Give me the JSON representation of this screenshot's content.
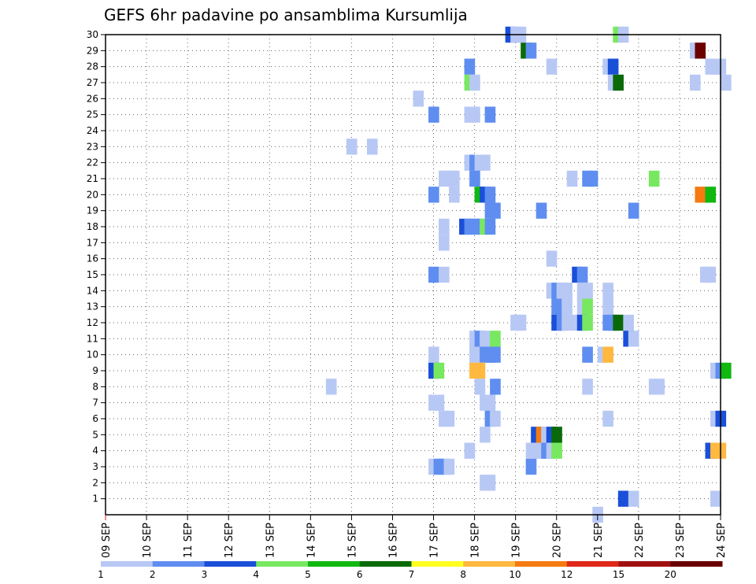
{
  "chart_data": {
    "type": "heatmap",
    "title": "GEFS 6hr padavine po ansamblima Kursumlija",
    "x_tick_labels": [
      "09 SEP",
      "10 SEP",
      "11 SEP",
      "12 SEP",
      "13 SEP",
      "14 SEP",
      "15 SEP",
      "16 SEP",
      "17 SEP",
      "18 SEP",
      "19 SEP",
      "20 SEP",
      "21 SEP",
      "22 SEP",
      "23 SEP",
      "24 SEP"
    ],
    "y_tick_labels": [
      "1",
      "2",
      "3",
      "4",
      "5",
      "6",
      "7",
      "8",
      "9",
      "10",
      "11",
      "12",
      "13",
      "14",
      "15",
      "16",
      "17",
      "18",
      "19",
      "20",
      "21",
      "22",
      "23",
      "24",
      "25",
      "26",
      "27",
      "28",
      "29",
      "30"
    ],
    "ylim": [
      0,
      30
    ],
    "xlim_days": [
      0,
      15
    ],
    "steps_per_day": 4,
    "grid": true,
    "colorbar": {
      "labels": [
        "1",
        "2",
        "3",
        "4",
        "5",
        "6",
        "7",
        "8",
        "10",
        "12",
        "15",
        "20"
      ],
      "colors": [
        "#b8c8f4",
        "#5f8ef0",
        "#1a4fd8",
        "#78e860",
        "#10b810",
        "#0a6a0a",
        "#ffff20",
        "#ffb840",
        "#f57a10",
        "#e02818",
        "#a01010",
        "#6a0000"
      ]
    },
    "cells": [
      [
        19.5,
        30,
        3
      ],
      [
        19.75,
        30,
        1
      ],
      [
        20,
        30,
        1
      ],
      [
        24.75,
        30,
        4
      ],
      [
        25,
        30,
        1
      ],
      [
        20.25,
        29,
        6
      ],
      [
        20.5,
        29,
        2
      ],
      [
        28.5,
        29,
        1
      ],
      [
        28.75,
        29,
        12
      ],
      [
        17.5,
        28,
        2
      ],
      [
        21.5,
        28,
        1
      ],
      [
        24.25,
        28,
        1
      ],
      [
        24.5,
        28,
        3
      ],
      [
        29.25,
        28,
        1
      ],
      [
        29.5,
        28,
        1
      ],
      [
        29.75,
        28,
        1
      ],
      [
        17.5,
        27,
        4
      ],
      [
        17.75,
        27,
        1
      ],
      [
        24.5,
        27,
        1
      ],
      [
        24.75,
        27,
        6
      ],
      [
        28.5,
        27,
        1
      ],
      [
        30,
        27,
        1
      ],
      [
        15,
        26,
        1
      ],
      [
        15.75,
        25,
        2
      ],
      [
        17.5,
        25,
        1
      ],
      [
        17.75,
        25,
        1
      ],
      [
        18.5,
        25,
        2
      ],
      [
        11.75,
        23,
        1
      ],
      [
        12.75,
        23,
        1
      ],
      [
        17.5,
        22,
        1
      ],
      [
        17.75,
        22,
        2
      ],
      [
        18,
        22,
        1
      ],
      [
        18.25,
        22,
        1
      ],
      [
        16.25,
        21,
        1
      ],
      [
        16.5,
        21,
        1
      ],
      [
        16.75,
        21,
        1
      ],
      [
        17.75,
        21,
        2
      ],
      [
        22.5,
        21,
        1
      ],
      [
        23.25,
        21,
        2
      ],
      [
        23.5,
        21,
        2
      ],
      [
        26.5,
        21,
        4
      ],
      [
        15.75,
        20,
        2
      ],
      [
        16.75,
        20,
        1
      ],
      [
        18,
        20,
        5
      ],
      [
        18.25,
        20,
        3
      ],
      [
        18.5,
        20,
        2
      ],
      [
        28.75,
        20,
        9
      ],
      [
        29.25,
        20,
        5
      ],
      [
        18.5,
        19,
        2
      ],
      [
        18.75,
        19,
        2
      ],
      [
        21,
        19,
        2
      ],
      [
        25.5,
        19,
        2
      ],
      [
        16.25,
        18,
        1
      ],
      [
        17.25,
        18,
        3
      ],
      [
        17.5,
        18,
        2
      ],
      [
        17.75,
        18,
        2
      ],
      [
        18,
        18,
        2
      ],
      [
        18.25,
        18,
        4
      ],
      [
        18.5,
        18,
        2
      ],
      [
        16.25,
        17,
        1
      ],
      [
        21.5,
        16,
        1
      ],
      [
        15.75,
        15,
        2
      ],
      [
        16.25,
        15,
        1
      ],
      [
        22.75,
        15,
        3
      ],
      [
        23,
        15,
        2
      ],
      [
        29,
        15,
        1
      ],
      [
        29.25,
        15,
        1
      ],
      [
        21.5,
        14,
        1
      ],
      [
        21.75,
        14,
        2
      ],
      [
        22,
        14,
        1
      ],
      [
        22.25,
        14,
        1
      ],
      [
        23,
        14,
        1
      ],
      [
        23.25,
        14,
        1
      ],
      [
        24.25,
        14,
        1
      ],
      [
        21.75,
        13,
        2
      ],
      [
        22.25,
        13,
        1
      ],
      [
        23,
        13,
        1
      ],
      [
        23.25,
        13,
        4
      ],
      [
        24.25,
        13,
        1
      ],
      [
        19.75,
        12,
        1
      ],
      [
        20,
        12,
        1
      ],
      [
        21.75,
        12,
        3
      ],
      [
        22,
        12,
        2
      ],
      [
        22.25,
        12,
        1
      ],
      [
        22.75,
        12,
        1
      ],
      [
        23,
        12,
        3
      ],
      [
        23.25,
        12,
        4
      ],
      [
        24.25,
        12,
        2
      ],
      [
        24.5,
        12,
        2
      ],
      [
        24.75,
        12,
        6
      ],
      [
        25.25,
        12,
        1
      ],
      [
        17.75,
        11,
        1
      ],
      [
        18,
        11,
        2
      ],
      [
        18.25,
        11,
        1
      ],
      [
        18.75,
        11,
        4
      ],
      [
        25.25,
        11,
        3
      ],
      [
        25.5,
        11,
        1
      ],
      [
        15.75,
        10,
        1
      ],
      [
        17.75,
        10,
        1
      ],
      [
        18.25,
        10,
        2
      ],
      [
        18.5,
        10,
        2
      ],
      [
        18.75,
        10,
        2
      ],
      [
        23.25,
        10,
        2
      ],
      [
        24,
        10,
        1
      ],
      [
        24.25,
        10,
        8
      ],
      [
        15.75,
        9,
        3
      ],
      [
        16,
        9,
        4
      ],
      [
        17.75,
        9,
        8
      ],
      [
        18,
        9,
        8
      ],
      [
        29.5,
        9,
        1
      ],
      [
        29.75,
        9,
        2
      ],
      [
        30,
        9,
        5
      ],
      [
        10.75,
        8,
        1
      ],
      [
        18,
        8,
        1
      ],
      [
        18.75,
        8,
        2
      ],
      [
        23.25,
        8,
        1
      ],
      [
        26.5,
        8,
        1
      ],
      [
        26.75,
        8,
        1
      ],
      [
        15.75,
        7,
        1
      ],
      [
        16,
        7,
        1
      ],
      [
        18.25,
        7,
        1
      ],
      [
        18.5,
        7,
        1
      ],
      [
        16.25,
        6,
        1
      ],
      [
        16.5,
        6,
        1
      ],
      [
        18.5,
        6,
        2
      ],
      [
        18.75,
        6,
        1
      ],
      [
        24.25,
        6,
        1
      ],
      [
        29.5,
        6,
        1
      ],
      [
        29.75,
        6,
        3
      ],
      [
        18.25,
        5,
        1
      ],
      [
        20.75,
        5,
        3
      ],
      [
        21,
        5,
        9
      ],
      [
        21.25,
        5,
        1
      ],
      [
        21.5,
        5,
        3
      ],
      [
        21.75,
        5,
        6
      ],
      [
        17.5,
        4,
        1
      ],
      [
        20.5,
        4,
        1
      ],
      [
        21,
        4,
        1
      ],
      [
        21.25,
        4,
        2
      ],
      [
        21.5,
        4,
        1
      ],
      [
        21.75,
        4,
        4
      ],
      [
        29.25,
        4,
        3
      ],
      [
        29.5,
        4,
        8
      ],
      [
        29.75,
        4,
        8
      ],
      [
        15.75,
        3,
        1
      ],
      [
        16,
        3,
        2
      ],
      [
        16.25,
        3,
        2
      ],
      [
        16.5,
        3,
        1
      ],
      [
        20.5,
        3,
        2
      ],
      [
        18.25,
        2,
        1
      ],
      [
        18.5,
        2,
        1
      ],
      [
        25,
        1,
        3
      ],
      [
        25.5,
        1,
        1
      ],
      [
        29.5,
        1,
        1
      ],
      [
        23.75,
        0,
        1
      ]
    ]
  }
}
